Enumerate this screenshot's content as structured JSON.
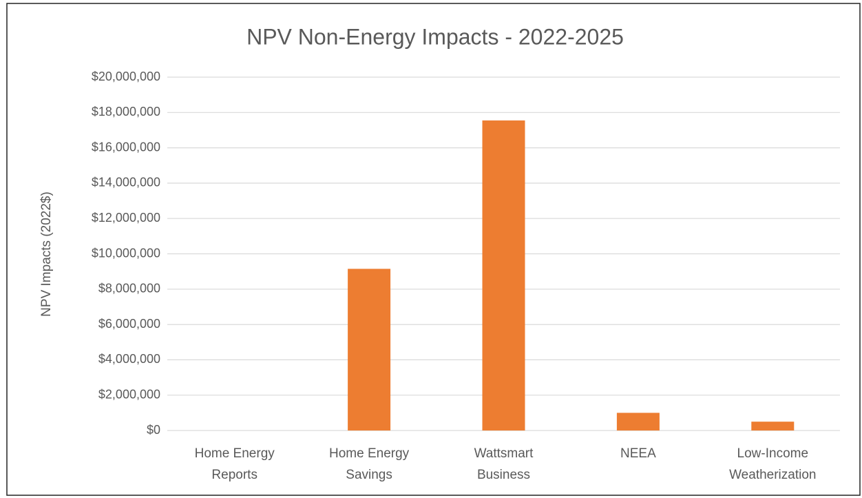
{
  "chart_data": {
    "type": "bar",
    "title": "NPV Non-Energy Impacts - 2022-2025",
    "y_label": "NPV Impacts (2022$)",
    "categories": [
      "Home Energy Reports",
      "Home Energy Savings",
      "Wattsmart Business",
      "NEEA",
      "Low-Income Weatherization"
    ],
    "values": [
      0,
      9150000,
      17550000,
      1000000,
      500000
    ],
    "color": "#ed7d31",
    "ylim": [
      0,
      20000000
    ],
    "yticks": [
      {
        "value": 0,
        "label": "$0"
      },
      {
        "value": 2000000,
        "label": "$2,000,000"
      },
      {
        "value": 4000000,
        "label": "$4,000,000"
      },
      {
        "value": 6000000,
        "label": "$6,000,000"
      },
      {
        "value": 8000000,
        "label": "$8,000,000"
      },
      {
        "value": 10000000,
        "label": "$10,000,000"
      },
      {
        "value": 12000000,
        "label": "$12,000,000"
      },
      {
        "value": 14000000,
        "label": "$14,000,000"
      },
      {
        "value": 16000000,
        "label": "$16,000,000"
      },
      {
        "value": 18000000,
        "label": "$18,000,000"
      },
      {
        "value": 20000000,
        "label": "$20,000,000"
      }
    ],
    "grid": true
  }
}
